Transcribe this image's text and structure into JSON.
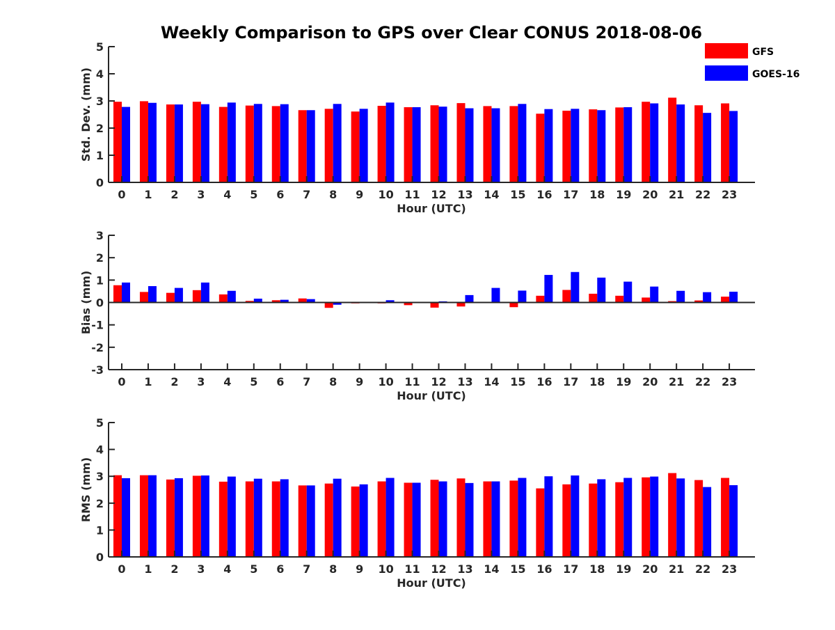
{
  "title": "Weekly Comparison to GPS over Clear CONUS 2018-08-06",
  "colors": {
    "GFS": "#ff0000",
    "GOES-16": "#0000ff",
    "axis": "#262626"
  },
  "legend": {
    "placement": "top-right",
    "items": [
      "GFS",
      "GOES-16"
    ]
  },
  "chart_data": [
    {
      "type": "bar",
      "title": "Weekly Comparison to GPS over Clear CONUS 2018-08-06",
      "xlabel": "Hour (UTC)",
      "ylabel": "Std. Dev. (mm)",
      "ylim": [
        0,
        5
      ],
      "yticks": [
        0,
        1,
        2,
        3,
        4,
        5
      ],
      "grid": false,
      "categories": [
        "0",
        "1",
        "2",
        "3",
        "4",
        "5",
        "6",
        "7",
        "8",
        "9",
        "10",
        "11",
        "12",
        "13",
        "14",
        "15",
        "16",
        "17",
        "18",
        "19",
        "20",
        "21",
        "22",
        "23"
      ],
      "series": [
        {
          "name": "GFS",
          "values": [
            2.97,
            2.99,
            2.87,
            2.97,
            2.78,
            2.83,
            2.81,
            2.66,
            2.71,
            2.61,
            2.82,
            2.77,
            2.84,
            2.92,
            2.81,
            2.81,
            2.53,
            2.64,
            2.69,
            2.76,
            2.97,
            3.12,
            2.84,
            2.91
          ]
        },
        {
          "name": "GOES-16",
          "values": [
            2.78,
            2.93,
            2.87,
            2.88,
            2.94,
            2.89,
            2.88,
            2.66,
            2.89,
            2.71,
            2.94,
            2.77,
            2.79,
            2.73,
            2.73,
            2.89,
            2.7,
            2.71,
            2.66,
            2.77,
            2.91,
            2.87,
            2.56,
            2.63
          ]
        }
      ]
    },
    {
      "type": "bar",
      "xlabel": "Hour (UTC)",
      "ylabel": "Bias (mm)",
      "ylim": [
        -3,
        3
      ],
      "yticks": [
        -3,
        -2,
        -1,
        0,
        1,
        2,
        3
      ],
      "grid": false,
      "categories": [
        "0",
        "1",
        "2",
        "3",
        "4",
        "5",
        "6",
        "7",
        "8",
        "9",
        "10",
        "11",
        "12",
        "13",
        "14",
        "15",
        "16",
        "17",
        "18",
        "19",
        "20",
        "21",
        "22",
        "23"
      ],
      "series": [
        {
          "name": "GFS",
          "values": [
            0.77,
            0.47,
            0.43,
            0.55,
            0.36,
            0.07,
            0.1,
            0.18,
            -0.24,
            -0.04,
            -0.04,
            -0.12,
            -0.23,
            -0.18,
            0.0,
            -0.21,
            0.3,
            0.56,
            0.39,
            0.3,
            0.22,
            0.06,
            0.09,
            0.26
          ]
        },
        {
          "name": "GOES-16",
          "values": [
            0.89,
            0.73,
            0.65,
            0.89,
            0.52,
            0.17,
            0.12,
            0.15,
            -0.1,
            0.0,
            0.1,
            0.02,
            0.05,
            0.33,
            0.65,
            0.53,
            1.23,
            1.36,
            1.11,
            0.93,
            0.71,
            0.52,
            0.46,
            0.48
          ]
        }
      ]
    },
    {
      "type": "bar",
      "xlabel": "Hour (UTC)",
      "ylabel": "RMS (mm)",
      "ylim": [
        0,
        5
      ],
      "yticks": [
        0,
        1,
        2,
        3,
        4,
        5
      ],
      "grid": false,
      "categories": [
        "0",
        "1",
        "2",
        "3",
        "4",
        "5",
        "6",
        "7",
        "8",
        "9",
        "10",
        "11",
        "12",
        "13",
        "14",
        "15",
        "16",
        "17",
        "18",
        "19",
        "20",
        "21",
        "22",
        "23"
      ],
      "series": [
        {
          "name": "GFS",
          "values": [
            3.04,
            3.04,
            2.88,
            3.02,
            2.8,
            2.81,
            2.81,
            2.66,
            2.73,
            2.62,
            2.81,
            2.76,
            2.87,
            2.92,
            2.81,
            2.84,
            2.55,
            2.7,
            2.73,
            2.78,
            2.96,
            3.12,
            2.86,
            2.94
          ]
        },
        {
          "name": "GOES-16",
          "values": [
            2.93,
            3.04,
            2.93,
            3.03,
            2.99,
            2.91,
            2.89,
            2.66,
            2.91,
            2.7,
            2.94,
            2.76,
            2.81,
            2.75,
            2.81,
            2.94,
            3.0,
            3.03,
            2.89,
            2.94,
            2.99,
            2.92,
            2.6,
            2.67
          ]
        }
      ]
    }
  ]
}
